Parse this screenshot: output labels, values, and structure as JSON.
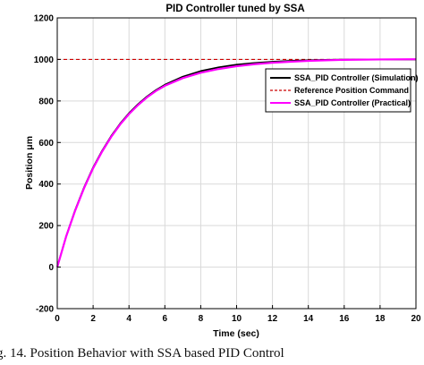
{
  "caption": "g. 14. Position Behavior with SSA based PID Control",
  "chart_data": {
    "type": "line",
    "title": "PID Controller tuned by SSA",
    "xlabel": "Time (sec)",
    "ylabel": "Position μm",
    "xlim": [
      0,
      20
    ],
    "ylim": [
      -200,
      1200
    ],
    "xticks": [
      0,
      2,
      4,
      6,
      8,
      10,
      12,
      14,
      16,
      18,
      20
    ],
    "yticks": [
      -200,
      0,
      200,
      400,
      600,
      800,
      1000,
      1200
    ],
    "xtick_labels": [
      "0",
      "2",
      "4",
      "6",
      "8",
      "10",
      "12",
      "14",
      "16",
      "18",
      "20"
    ],
    "ytick_labels": [
      "-200",
      "0",
      "200",
      "400",
      "600",
      "800",
      "1000",
      "1200"
    ],
    "grid": true,
    "legend_position": "right",
    "series": [
      {
        "name": "SSA_PID Controller (Simulation)",
        "color": "#000000",
        "style": "solid",
        "x": [
          0,
          0.5,
          1,
          1.5,
          2,
          2.5,
          3,
          3.5,
          4,
          4.5,
          5,
          5.5,
          6,
          7,
          8,
          9,
          10,
          11,
          12,
          13,
          14,
          15,
          16,
          18,
          20
        ],
        "y": [
          0,
          150,
          275,
          385,
          480,
          560,
          630,
          690,
          741,
          784,
          821,
          852,
          878,
          917,
          944,
          962,
          975,
          983,
          989,
          993,
          996,
          998,
          999,
          1000,
          1000
        ]
      },
      {
        "name": "Reference Position Command",
        "color": "#cc0000",
        "style": "dashed",
        "x": [
          0,
          20
        ],
        "y": [
          1000,
          1000
        ]
      },
      {
        "name": "SSA_PID Controller (Practical)",
        "color": "#ff00ff",
        "style": "solid",
        "x": [
          0,
          0.5,
          1,
          1.5,
          2,
          2.5,
          3,
          3.5,
          4,
          4.5,
          5,
          5.5,
          6,
          7,
          8,
          9,
          10,
          11,
          12,
          13,
          14,
          15,
          16,
          18,
          20
        ],
        "y": [
          0,
          148,
          272,
          381,
          476,
          556,
          626,
          686,
          737,
          780,
          817,
          848,
          873,
          910,
          936,
          954,
          967,
          977,
          984,
          989,
          993,
          996,
          998,
          1000,
          1001
        ]
      }
    ]
  }
}
